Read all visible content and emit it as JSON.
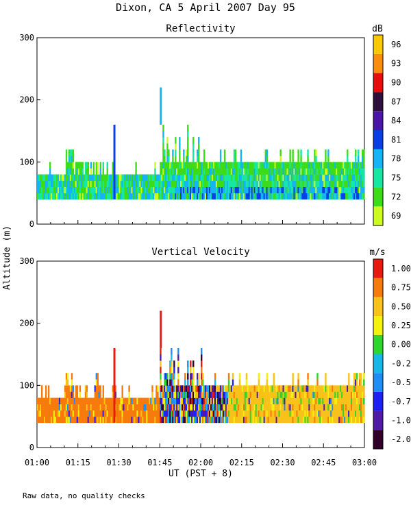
{
  "title": "Dixon, CA   5 April 2007   Day  95",
  "footnote": "Raw data, no quality checks",
  "colors": {
    "reflectivity_scale": [
      "#cdfb1f",
      "#3cdc19",
      "#16e8a3",
      "#15b4f4",
      "#0b3fe6",
      "#4b16a8",
      "#2f0f3c",
      "#e80e0e",
      "#fa8d0d",
      "#f9c807"
    ],
    "velocity_scale": [
      "#300028",
      "#4e1aa6",
      "#1f1ff2",
      "#1e8ef5",
      "#17b7ea",
      "#2ed72d",
      "#f2f20d",
      "#f9c21a",
      "#f77a0c",
      "#e8190f"
    ]
  },
  "chart_data": [
    {
      "type": "heatmap",
      "title": "Reflectivity",
      "xlabel": "UT  (PST + 8)",
      "ylabel": "Altitude (m)",
      "x_range_minutes": [
        0,
        120
      ],
      "x_ticks": [
        "01:00",
        "01:15",
        "01:30",
        "01:45",
        "02:00",
        "02:15",
        "02:30",
        "02:45",
        "03:00"
      ],
      "ylim": [
        0,
        300
      ],
      "y_ticks": [
        0,
        100,
        200,
        300
      ],
      "colorbar": {
        "unit": "dB",
        "labels": [
          "69",
          "72",
          "75",
          "78",
          "81",
          "84",
          "87",
          "90",
          "93",
          "96"
        ]
      },
      "echo_layer_m": [
        40,
        160
      ],
      "features": [
        {
          "time": "01:28",
          "top_m": 160
        },
        {
          "time": "01:45",
          "bottom_m": 160,
          "top_m": 220
        }
      ]
    },
    {
      "type": "heatmap",
      "title": "Vertical Velocity",
      "xlabel": "UT  (PST + 8)",
      "ylabel": "Altitude (m)",
      "x_range_minutes": [
        0,
        120
      ],
      "x_ticks": [
        "01:00",
        "01:15",
        "01:30",
        "01:45",
        "02:00",
        "02:15",
        "02:30",
        "02:45",
        "03:00"
      ],
      "ylim": [
        0,
        300
      ],
      "y_ticks": [
        0,
        100,
        200,
        300
      ],
      "colorbar": {
        "unit": "m/s",
        "labels": [
          "-2.00",
          "-1.00",
          "-0.75",
          "-0.50",
          "-0.25",
          "0.00",
          "0.25",
          "0.50",
          "0.75",
          "1.00"
        ]
      },
      "echo_layer_m": [
        40,
        160
      ],
      "features": [
        {
          "time": "01:28",
          "top_m": 160
        },
        {
          "time": "01:45",
          "bottom_m": 160,
          "top_m": 220
        }
      ]
    }
  ]
}
